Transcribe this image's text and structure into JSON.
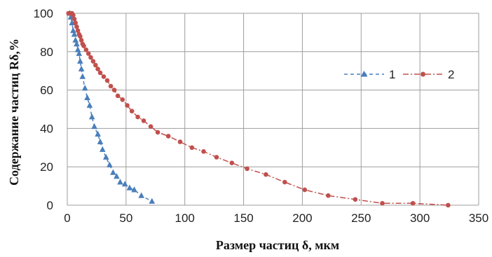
{
  "chart_data": {
    "type": "scatter",
    "xlabel": "Размер частиц δ, мкм",
    "ylabel": "Содержание частиц  Rδ,%",
    "xlim": [
      0,
      350
    ],
    "ylim": [
      0,
      100
    ],
    "x_ticks": [
      "0",
      "50",
      "100",
      "150",
      "200",
      "250",
      "300",
      "350"
    ],
    "y_ticks": [
      "0",
      "20",
      "40",
      "60",
      "80",
      "100"
    ],
    "grid": true,
    "legend_position": "right",
    "series": [
      {
        "name": "1",
        "color": "#4a7ebb",
        "marker": "triangle",
        "line_style": "dashed",
        "x": [
          2,
          3,
          4,
          5,
          6,
          7,
          8,
          9,
          10,
          11,
          12,
          13,
          15,
          17,
          19,
          21,
          23,
          26,
          28,
          30,
          33,
          36,
          39,
          42,
          45,
          49,
          53,
          57,
          63,
          72
        ],
        "y": [
          100,
          98,
          95,
          91,
          89,
          86,
          84,
          81,
          79,
          75,
          71,
          67,
          61,
          56,
          52,
          46,
          41,
          37,
          33,
          29,
          25,
          21,
          17,
          15,
          12,
          11,
          9,
          8,
          5,
          2
        ]
      },
      {
        "name": "2",
        "color": "#c0504d",
        "marker": "circle",
        "line_style": "dash-dot",
        "x": [
          1,
          2,
          3,
          4,
          5,
          6,
          7,
          8,
          9,
          10,
          11,
          12,
          13,
          14,
          16,
          18,
          20,
          22,
          24,
          26,
          28,
          31,
          34,
          37,
          40,
          43,
          47,
          51,
          55,
          60,
          65,
          71,
          77,
          86,
          96,
          106,
          116,
          127,
          140,
          153,
          169,
          185,
          202,
          222,
          245,
          268,
          294,
          324
        ],
        "y": [
          100,
          100,
          100,
          100,
          99,
          97,
          95,
          93,
          91,
          89,
          88,
          86,
          84,
          83,
          81,
          79,
          77,
          75,
          73,
          71,
          69,
          67,
          65,
          62,
          60,
          57,
          55,
          52,
          49,
          46,
          44,
          41,
          38,
          36,
          33,
          30,
          28,
          25,
          22,
          19,
          16,
          12,
          8,
          5,
          3,
          1,
          1,
          0
        ]
      }
    ],
    "legend": [
      {
        "label": "1"
      },
      {
        "label": "2"
      }
    ]
  }
}
